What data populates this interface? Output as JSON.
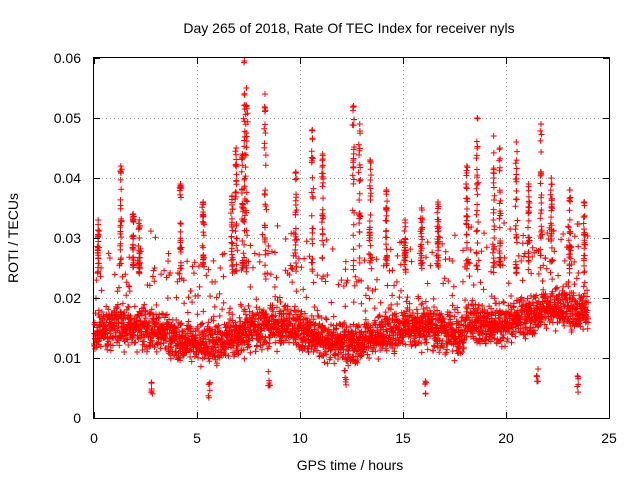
{
  "chart_data": {
    "type": "scatter",
    "title": "Day 265 of 2018, Rate Of TEC Index for receiver nyls",
    "xlabel": "GPS time / hours",
    "ylabel": "ROTI / TECUs",
    "xlim": [
      0,
      25
    ],
    "ylim": [
      0,
      0.06
    ],
    "xticks": [
      0,
      5,
      10,
      15,
      20,
      25
    ],
    "xtick_labels": [
      "0",
      "5",
      "10",
      "15",
      "20",
      "25"
    ],
    "yticks": [
      0,
      0.01,
      0.02,
      0.03,
      0.04,
      0.05,
      0.06
    ],
    "ytick_labels": [
      "0",
      "0.01",
      "0.02",
      "0.03",
      "0.04",
      "0.05",
      "0.06"
    ],
    "grid": true,
    "marker": "+",
    "color": "#ff0000",
    "series": [
      {
        "name": "ROTI",
        "x_range_hours": [
          0,
          24
        ],
        "typical_range": [
          0.005,
          0.03
        ],
        "median": 0.014,
        "peaks": [
          {
            "x": 0.2,
            "y": 0.033
          },
          {
            "x": 1.3,
            "y": 0.042
          },
          {
            "x": 1.9,
            "y": 0.034
          },
          {
            "x": 2.2,
            "y": 0.033
          },
          {
            "x": 4.2,
            "y": 0.039
          },
          {
            "x": 5.3,
            "y": 0.036
          },
          {
            "x": 6.7,
            "y": 0.037
          },
          {
            "x": 6.9,
            "y": 0.045
          },
          {
            "x": 7.2,
            "y": 0.044
          },
          {
            "x": 7.3,
            "y": 0.0595
          },
          {
            "x": 7.4,
            "y": 0.055
          },
          {
            "x": 8.3,
            "y": 0.054
          },
          {
            "x": 9.8,
            "y": 0.041
          },
          {
            "x": 10.6,
            "y": 0.048
          },
          {
            "x": 11.1,
            "y": 0.044
          },
          {
            "x": 12.6,
            "y": 0.052
          },
          {
            "x": 12.9,
            "y": 0.049
          },
          {
            "x": 13.4,
            "y": 0.043
          },
          {
            "x": 14.2,
            "y": 0.038
          },
          {
            "x": 15.1,
            "y": 0.033
          },
          {
            "x": 15.9,
            "y": 0.035
          },
          {
            "x": 16.7,
            "y": 0.036
          },
          {
            "x": 18.1,
            "y": 0.042
          },
          {
            "x": 18.6,
            "y": 0.05
          },
          {
            "x": 19.4,
            "y": 0.047
          },
          {
            "x": 19.7,
            "y": 0.045
          },
          {
            "x": 20.5,
            "y": 0.046
          },
          {
            "x": 21.1,
            "y": 0.039
          },
          {
            "x": 21.7,
            "y": 0.049
          },
          {
            "x": 22.2,
            "y": 0.04
          },
          {
            "x": 23.1,
            "y": 0.038
          },
          {
            "x": 23.8,
            "y": 0.036
          }
        ],
        "dips": [
          {
            "x": 2.8,
            "y": 0.004
          },
          {
            "x": 5.6,
            "y": 0.003
          },
          {
            "x": 8.5,
            "y": 0.005
          },
          {
            "x": 12.2,
            "y": 0.005
          },
          {
            "x": 16.1,
            "y": 0.004
          },
          {
            "x": 21.5,
            "y": 0.006
          },
          {
            "x": 23.5,
            "y": 0.004
          }
        ]
      }
    ]
  }
}
